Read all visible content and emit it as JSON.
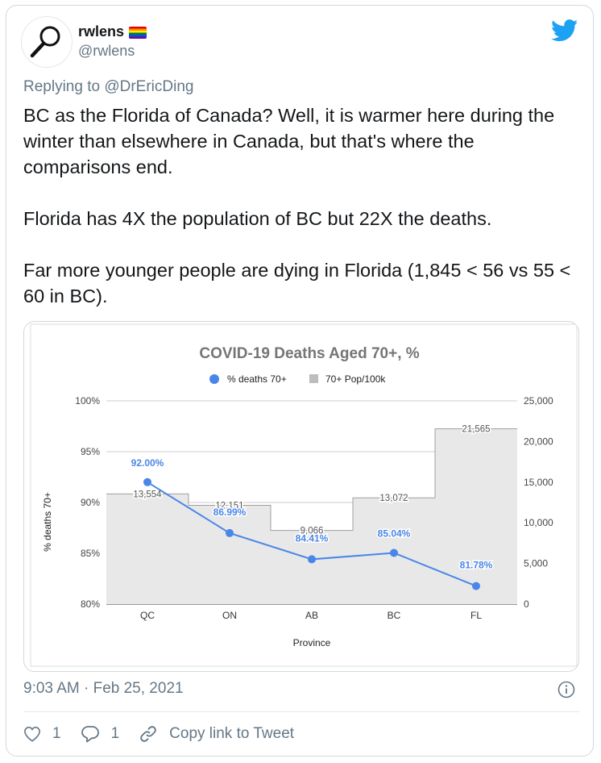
{
  "tweet": {
    "display_name": "rwlens",
    "handle": "@rwlens",
    "reply_prefix": "Replying to",
    "reply_to": "@DrEricDing",
    "paragraphs": [
      "BC as the Florida of Canada? Well, it is warmer here during the winter than elsewhere in Canada, but that's where the comparisons end.",
      "Florida has 4X the population of BC but 22X the deaths.",
      "Far more younger people are dying in Florida (1,845 < 56 vs 55 < 60 in BC)."
    ],
    "timestamp": "9:03 AM · Feb 25, 2021",
    "like_count": "1",
    "reply_count": "1",
    "copy_link_label": "Copy link to Tweet"
  },
  "colors": {
    "twitter_blue": "#1da1f2",
    "line_series": "#4a86e8",
    "area_fill": "#e8e8e8",
    "area_stroke": "#a0a0a0"
  },
  "chart_data": {
    "type": "line",
    "title": "COVID-19 Deaths Aged 70+, %",
    "xlabel": "Province",
    "ylabel": "% deaths 70+",
    "categories": [
      "QC",
      "ON",
      "AB",
      "BC",
      "FL"
    ],
    "legend_position": "top",
    "series": [
      {
        "name": "% deaths 70+",
        "type": "line",
        "axis": "left",
        "values": [
          92.0,
          86.99,
          84.41,
          85.04,
          81.78
        ],
        "labels": [
          "92.00%",
          "86.99%",
          "84.41%",
          "85.04%",
          "81.78%"
        ]
      },
      {
        "name": "70+ Pop/100k",
        "type": "stepped-area",
        "axis": "right",
        "values": [
          13554,
          12151,
          9066,
          13072,
          21565
        ],
        "labels": [
          "13,554",
          "12,151",
          "9,066",
          "13,072",
          "21,565"
        ]
      }
    ],
    "left_axis": {
      "min": 80,
      "max": 100,
      "ticks": [
        "80%",
        "85%",
        "90%",
        "95%",
        "100%"
      ]
    },
    "right_axis": {
      "min": 0,
      "max": 25000,
      "ticks": [
        "0",
        "5,000",
        "10,000",
        "15,000",
        "20,000",
        "25,000"
      ]
    },
    "grid": true
  }
}
